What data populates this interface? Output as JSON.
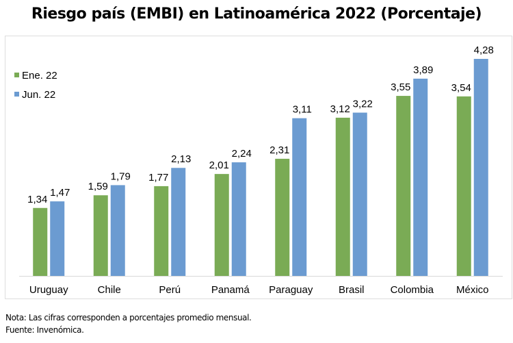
{
  "chart_data": {
    "type": "bar",
    "title": "Riesgo país (EMBI) en Latinoamérica 2022 (Porcentaje)",
    "categories": [
      "Uruguay",
      "Chile",
      "Perú",
      "Panamá",
      "Paraguay",
      "Brasil",
      "Colombia",
      "México"
    ],
    "series": [
      {
        "name": "Ene. 22",
        "color": "#7aab55",
        "values": [
          1.34,
          1.59,
          1.77,
          2.01,
          2.31,
          3.12,
          3.55,
          3.54
        ],
        "labels": [
          "1,34",
          "1,59",
          "1,77",
          "2,01",
          "2,31",
          "3,12",
          "3,55",
          "3,54"
        ]
      },
      {
        "name": "Jun. 22",
        "color": "#6b9bd1",
        "values": [
          1.47,
          1.79,
          2.13,
          2.24,
          3.11,
          3.22,
          3.89,
          4.28
        ],
        "labels": [
          "1,47",
          "1,79",
          "2,13",
          "2,24",
          "3,11",
          "3,22",
          "3,89",
          "4,28"
        ]
      }
    ],
    "ylim": [
      0,
      4.28
    ],
    "grid": false,
    "legend_position": "left"
  },
  "notes": {
    "nota": "Nota: Las cifras corresponden a porcentajes promedio mensual.",
    "fuente": "Fuente: Invenómica."
  }
}
